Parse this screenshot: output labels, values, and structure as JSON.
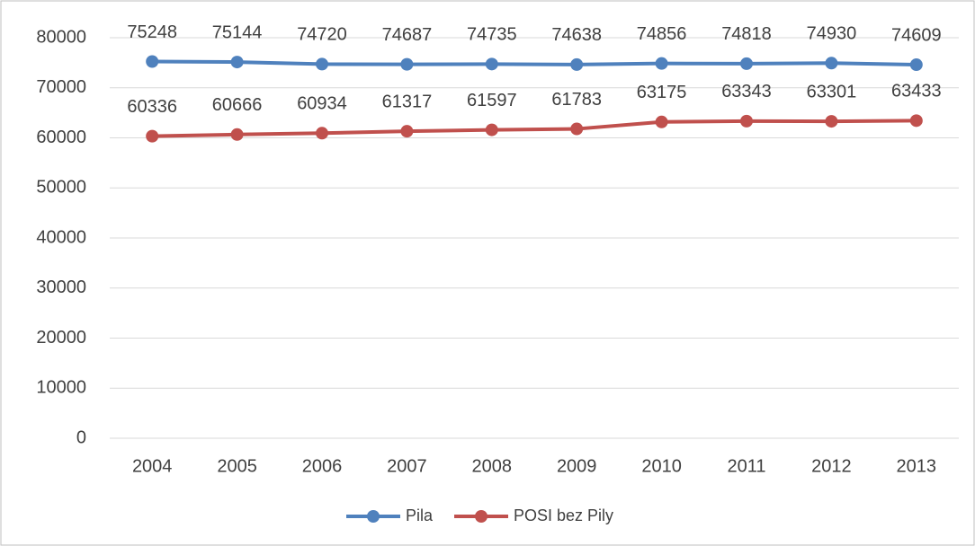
{
  "chart_data": {
    "type": "line",
    "categories": [
      "2004",
      "2005",
      "2006",
      "2007",
      "2008",
      "2009",
      "2010",
      "2011",
      "2012",
      "2013"
    ],
    "series": [
      {
        "name": "Pila",
        "color": "#4f81bd",
        "values": [
          75248,
          75144,
          74720,
          74687,
          74735,
          74638,
          74856,
          74818,
          74930,
          74609
        ]
      },
      {
        "name": "POSI bez Pily",
        "color": "#c0504d",
        "values": [
          60336,
          60666,
          60934,
          61317,
          61597,
          61783,
          63175,
          63343,
          63301,
          63433
        ]
      }
    ],
    "ylim": [
      0,
      80000
    ],
    "yticks": [
      0,
      10000,
      20000,
      30000,
      40000,
      50000,
      60000,
      70000,
      80000
    ],
    "grid": true,
    "legend": "bottom"
  }
}
